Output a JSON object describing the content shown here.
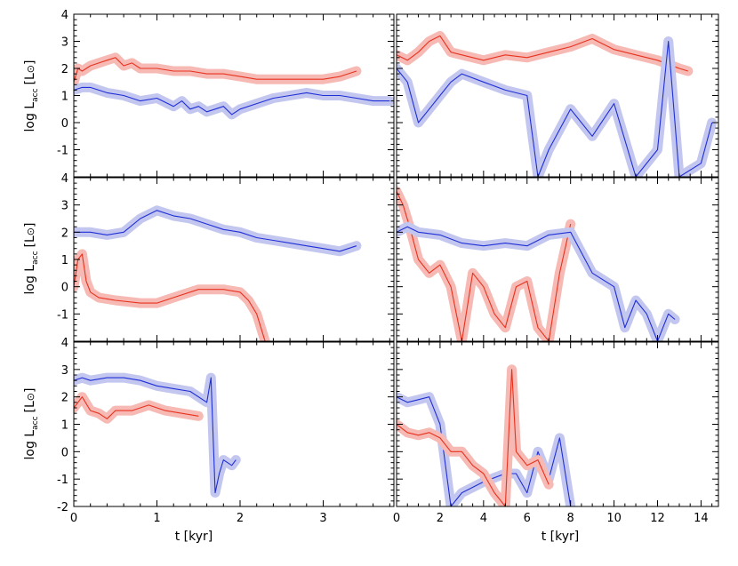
{
  "colors": {
    "red": "#e8321e",
    "red_band": "#f6b9b4",
    "blue": "#1f2fd6",
    "blue_band": "#c3c7f0",
    "axis": "#000000"
  },
  "axes": {
    "left_xlabel": "t [kyr]",
    "right_xlabel": "t [kyr]",
    "ylabel_main": "log L",
    "ylabel_sub": "acc",
    "ylabel_unit_open": "[L",
    "ylabel_unit_sym": "⊙",
    "ylabel_unit_close": "]",
    "left_xticks": [
      "0",
      "1",
      "2",
      "3"
    ],
    "right_xticks": [
      "0",
      "2",
      "4",
      "6",
      "8",
      "10",
      "12",
      "14"
    ],
    "yticks": [
      "-2",
      "-1",
      "0",
      "1",
      "2",
      "3",
      "4"
    ]
  },
  "chart_data": [
    {
      "type": "line",
      "panel": "top-left",
      "xlim": [
        0,
        3.85
      ],
      "ylim": [
        -2,
        4
      ],
      "series": [
        {
          "color": "red",
          "band": true,
          "x": [
            0,
            0.05,
            0.1,
            0.2,
            0.3,
            0.4,
            0.5,
            0.6,
            0.7,
            0.8,
            1.0,
            1.2,
            1.4,
            1.6,
            1.8,
            2.0,
            2.2,
            2.4,
            2.6,
            2.8,
            3.0,
            3.2,
            3.4
          ],
          "y": [
            1.5,
            2.0,
            1.9,
            2.1,
            2.2,
            2.3,
            2.4,
            2.1,
            2.2,
            2.0,
            2.0,
            1.9,
            1.9,
            1.8,
            1.8,
            1.7,
            1.6,
            1.6,
            1.6,
            1.6,
            1.6,
            1.7,
            1.9
          ]
        },
        {
          "color": "blue",
          "band": true,
          "x": [
            0,
            0.1,
            0.2,
            0.4,
            0.6,
            0.8,
            1.0,
            1.2,
            1.3,
            1.4,
            1.5,
            1.6,
            1.7,
            1.8,
            1.9,
            2.0,
            2.2,
            2.4,
            2.6,
            2.8,
            3.0,
            3.2,
            3.4,
            3.6,
            3.8
          ],
          "y": [
            1.2,
            1.3,
            1.3,
            1.1,
            1.0,
            0.8,
            0.9,
            0.6,
            0.8,
            0.5,
            0.6,
            0.4,
            0.5,
            0.6,
            0.3,
            0.5,
            0.7,
            0.9,
            1.0,
            1.1,
            1.0,
            1.0,
            0.9,
            0.8,
            0.8
          ]
        }
      ]
    },
    {
      "type": "line",
      "panel": "top-right",
      "xlim": [
        0,
        14.8
      ],
      "ylim": [
        -2,
        4
      ],
      "series": [
        {
          "color": "red",
          "band": true,
          "x": [
            0,
            0.5,
            1,
            1.5,
            2,
            2.5,
            3,
            4,
            5,
            6,
            7,
            8,
            9,
            10,
            11,
            12,
            13,
            13.4
          ],
          "y": [
            2.5,
            2.3,
            2.6,
            3.0,
            3.2,
            2.6,
            2.5,
            2.3,
            2.5,
            2.4,
            2.6,
            2.8,
            3.1,
            2.7,
            2.5,
            2.3,
            2.0,
            1.9
          ]
        },
        {
          "color": "blue",
          "band": true,
          "x": [
            0,
            0.5,
            1,
            1.5,
            2,
            2.5,
            3,
            4,
            5,
            6,
            6.5,
            7,
            8,
            9,
            10,
            11,
            12,
            12.5,
            13,
            14,
            14.5
          ],
          "y": [
            2.0,
            1.5,
            0.0,
            0.5,
            1.0,
            1.5,
            1.8,
            1.5,
            1.2,
            1.0,
            -2.0,
            -1.0,
            0.5,
            -0.5,
            0.7,
            -2.0,
            -1.0,
            3.0,
            -2.0,
            -1.5,
            0.0
          ]
        }
      ]
    },
    {
      "type": "line",
      "panel": "middle-left",
      "xlim": [
        0,
        3.85
      ],
      "ylim": [
        -2,
        4
      ],
      "series": [
        {
          "color": "blue",
          "band": true,
          "x": [
            0,
            0.2,
            0.4,
            0.6,
            0.8,
            1.0,
            1.2,
            1.4,
            1.6,
            1.8,
            2.0,
            2.2,
            2.4,
            2.6,
            2.8,
            3.0,
            3.2,
            3.4
          ],
          "y": [
            2.0,
            2.0,
            1.9,
            2.0,
            2.5,
            2.8,
            2.6,
            2.5,
            2.3,
            2.1,
            2.0,
            1.8,
            1.7,
            1.6,
            1.5,
            1.4,
            1.3,
            1.5
          ]
        },
        {
          "color": "red",
          "band": true,
          "x": [
            0,
            0.05,
            0.1,
            0.15,
            0.2,
            0.3,
            0.5,
            0.8,
            1.0,
            1.2,
            1.5,
            1.8,
            2.0,
            2.1,
            2.2,
            2.3
          ],
          "y": [
            0.0,
            1.0,
            1.2,
            0.2,
            -0.2,
            -0.4,
            -0.5,
            -0.6,
            -0.6,
            -0.4,
            -0.1,
            -0.1,
            -0.2,
            -0.5,
            -1.0,
            -2.0
          ]
        }
      ]
    },
    {
      "type": "line",
      "panel": "middle-right",
      "xlim": [
        0,
        14.8
      ],
      "ylim": [
        -2,
        4
      ],
      "series": [
        {
          "color": "red",
          "band": true,
          "x": [
            0,
            0.3,
            0.6,
            1,
            1.5,
            2,
            2.5,
            3,
            3.5,
            4,
            4.5,
            5,
            5.5,
            6,
            6.5,
            7,
            7.5,
            8
          ],
          "y": [
            3.5,
            3.0,
            2.2,
            1.0,
            0.5,
            0.8,
            0.0,
            -2.0,
            0.5,
            0.0,
            -1.0,
            -1.5,
            0.0,
            0.2,
            -1.5,
            -2.0,
            0.5,
            2.3
          ]
        },
        {
          "color": "blue",
          "band": true,
          "x": [
            0,
            0.5,
            1,
            2,
            3,
            4,
            5,
            6,
            7,
            8,
            9,
            10,
            10.5,
            11,
            11.5,
            12,
            12.5,
            12.8
          ],
          "y": [
            2.0,
            2.2,
            2.0,
            1.9,
            1.6,
            1.5,
            1.6,
            1.5,
            1.9,
            2.0,
            0.5,
            0.0,
            -1.5,
            -0.5,
            -1.0,
            -2.0,
            -1.0,
            -1.2
          ]
        }
      ]
    },
    {
      "type": "line",
      "panel": "bottom-left",
      "xlim": [
        0,
        3.85
      ],
      "ylim": [
        -2,
        4
      ],
      "series": [
        {
          "color": "blue",
          "band": true,
          "x": [
            0,
            0.1,
            0.2,
            0.4,
            0.6,
            0.8,
            1.0,
            1.2,
            1.4,
            1.6,
            1.65,
            1.7,
            1.75,
            1.8,
            1.9,
            1.95
          ],
          "y": [
            2.6,
            2.7,
            2.6,
            2.7,
            2.7,
            2.6,
            2.4,
            2.3,
            2.2,
            1.8,
            2.7,
            -1.5,
            -0.8,
            -0.3,
            -0.5,
            -0.3
          ]
        },
        {
          "color": "red",
          "band": true,
          "x": [
            0,
            0.1,
            0.2,
            0.3,
            0.4,
            0.5,
            0.7,
            0.9,
            1.1,
            1.3,
            1.5
          ],
          "y": [
            1.6,
            2.0,
            1.5,
            1.4,
            1.2,
            1.5,
            1.5,
            1.7,
            1.5,
            1.4,
            1.3
          ]
        }
      ]
    },
    {
      "type": "line",
      "panel": "bottom-right",
      "xlim": [
        0,
        14.8
      ],
      "ylim": [
        -2,
        4
      ],
      "series": [
        {
          "color": "blue",
          "band": true,
          "x": [
            0,
            0.5,
            1,
            1.5,
            2,
            2.5,
            3,
            4,
            5,
            5.5,
            6,
            6.5,
            7,
            7.5,
            8
          ],
          "y": [
            2.0,
            1.8,
            1.9,
            2.0,
            1.0,
            -2.0,
            -1.5,
            -1.1,
            -0.8,
            -0.8,
            -1.5,
            0.0,
            -1.0,
            0.5,
            -2.0
          ]
        },
        {
          "color": "red",
          "band": true,
          "x": [
            0,
            0.5,
            1,
            1.5,
            2,
            2.5,
            3,
            3.5,
            4,
            4.5,
            5,
            5.3,
            5.5,
            6,
            6.5,
            7
          ],
          "y": [
            1.0,
            0.7,
            0.6,
            0.7,
            0.5,
            0.0,
            0.0,
            -0.5,
            -0.8,
            -1.5,
            -2.0,
            3.0,
            0.0,
            -0.5,
            -0.3,
            -1.2
          ]
        }
      ]
    }
  ]
}
